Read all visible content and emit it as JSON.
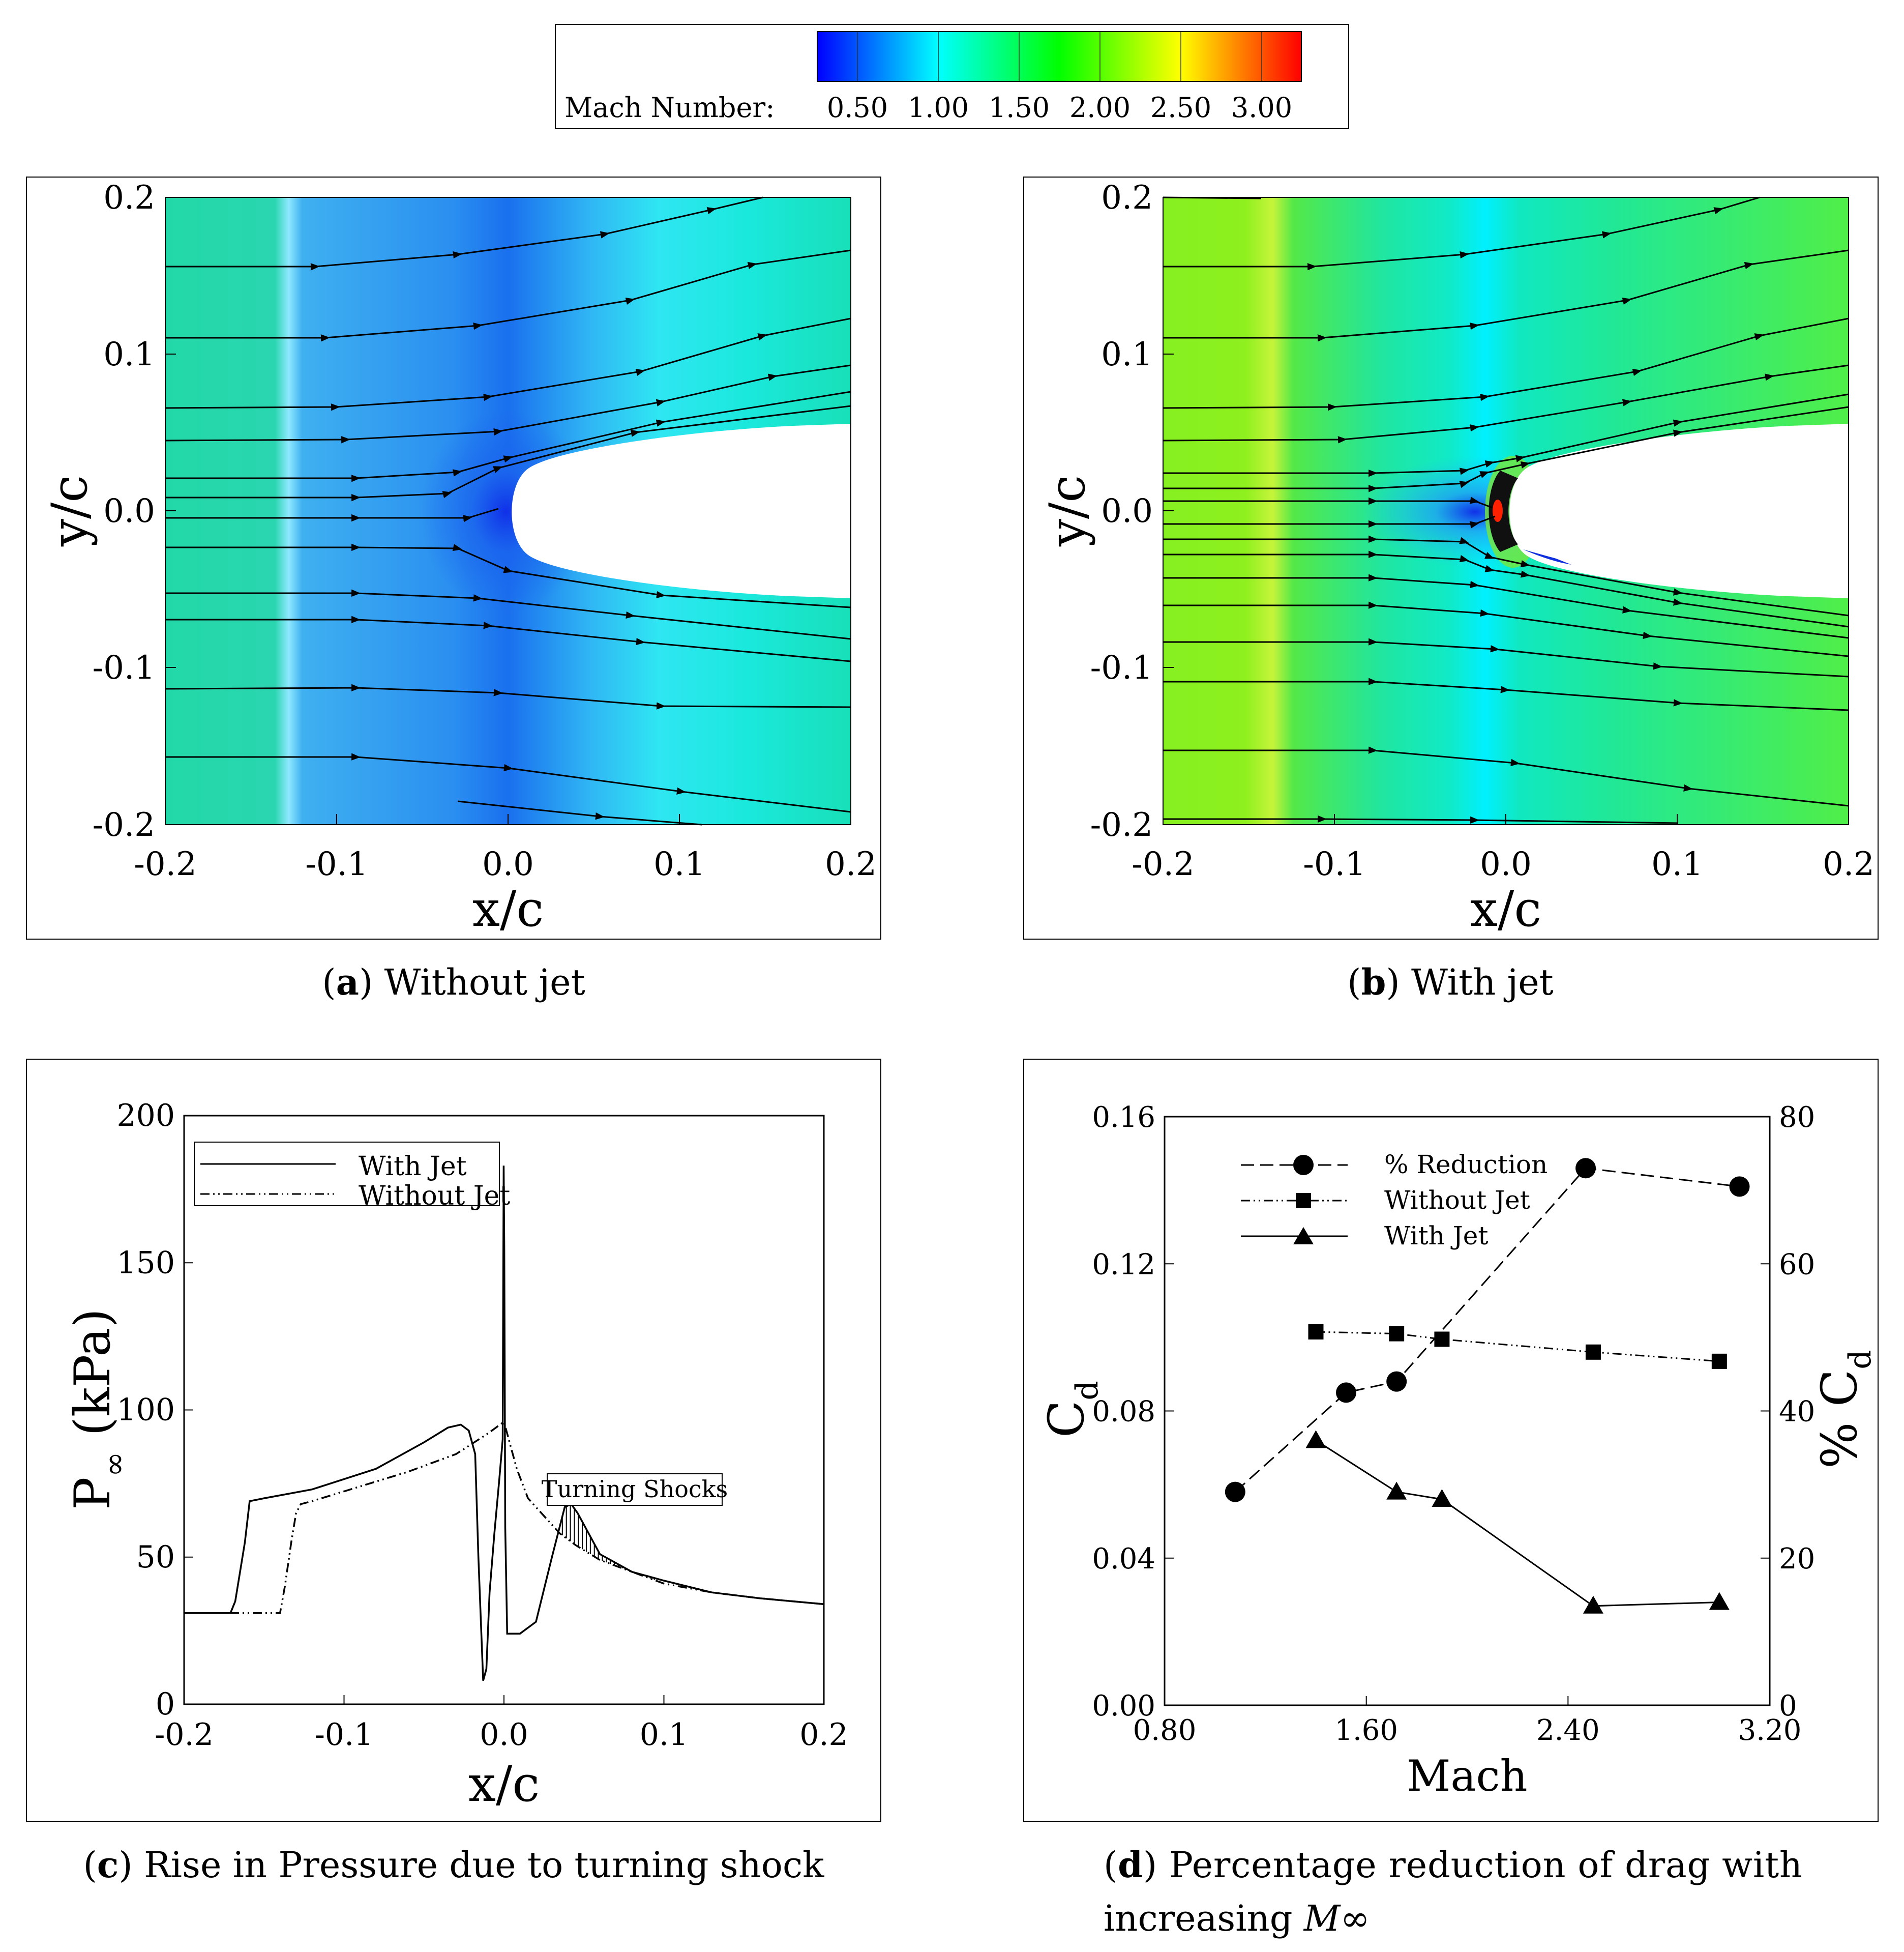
{
  "colorbar": {
    "label": "Mach Number:",
    "tick_labels": [
      "0.50",
      "1.00",
      "1.50",
      "2.00",
      "2.50",
      "3.00"
    ],
    "range": [
      0.25,
      3.25
    ],
    "colors": [
      "#0000ff",
      "#00ffff",
      "#00ff00",
      "#ffff00",
      "#ff0000"
    ]
  },
  "panel_a": {
    "caption_letter": "a",
    "caption_text": "Without jet",
    "xlabel": "x/c",
    "ylabel": "y/c",
    "xticks": [
      "-0.2",
      "-0.1",
      "0.0",
      "0.1",
      "0.2"
    ],
    "yticks": [
      "0.2",
      "0.1",
      "0.0",
      "-0.1",
      "-0.2"
    ],
    "xlim": [
      -0.2,
      0.2
    ],
    "ylim": [
      -0.2,
      0.2
    ]
  },
  "panel_b": {
    "caption_letter": "b",
    "caption_text": "With jet",
    "xlabel": "x/c",
    "ylabel": "y/c",
    "xticks": [
      "-0.2",
      "-0.1",
      "0.0",
      "0.1",
      "0.2"
    ],
    "yticks": [
      "0.2",
      "0.1",
      "0.0",
      "-0.1",
      "-0.2"
    ],
    "xlim": [
      -0.2,
      0.2
    ],
    "ylim": [
      -0.2,
      0.2
    ]
  },
  "panel_c": {
    "caption_letter": "c",
    "caption_text": "Rise in Pressure due to turning shock"
  },
  "panel_d": {
    "caption_letter": "d",
    "caption_text": "Percentage reduction of drag with",
    "caption_line2": "increasing",
    "caption_math": "M∞"
  },
  "chart_data": [
    {
      "type": "line",
      "panel": "c",
      "xlabel": "x/c",
      "ylabel_main": "P",
      "ylabel_sub": "∞",
      "ylabel_unit": "(kPa)",
      "xlim": [
        -0.2,
        0.2
      ],
      "ylim": [
        0,
        200
      ],
      "xticks": [
        -0.2,
        -0.1,
        0.0,
        0.1,
        0.2
      ],
      "xtick_labels": [
        "-0.2",
        "-0.1",
        "0.0",
        "0.1",
        "0.2"
      ],
      "yticks": [
        0,
        50,
        100,
        150,
        200
      ],
      "ytick_labels": [
        "0",
        "50",
        "100",
        "150",
        "200"
      ],
      "annotation": "Turning Shocks",
      "legend": [
        "With Jet",
        "Without Jet"
      ],
      "series": [
        {
          "name": "With Jet",
          "style": "solid",
          "x": [
            -0.2,
            -0.171,
            -0.168,
            -0.162,
            -0.159,
            -0.15,
            -0.12,
            -0.08,
            -0.05,
            -0.035,
            -0.027,
            -0.022,
            -0.018,
            -0.016,
            -0.013,
            -0.011,
            -0.009,
            -0.006,
            -0.003,
            -0.0008,
            -0.0002,
            0.0002,
            0.0008,
            0.002,
            0.005,
            0.01,
            0.02,
            0.03,
            0.038,
            0.042,
            0.046,
            0.052,
            0.06,
            0.08,
            0.1,
            0.13,
            0.16,
            0.2
          ],
          "y": [
            31,
            31,
            35,
            55,
            69,
            70,
            73,
            80,
            89,
            94,
            95,
            93,
            85,
            50,
            8,
            12,
            38,
            58,
            76,
            90,
            183,
            155,
            60,
            24,
            24,
            24,
            28,
            50,
            67,
            68,
            65,
            59,
            51,
            45,
            42,
            38,
            36,
            34
          ]
        },
        {
          "name": "Without Jet",
          "style": "dash-dot-dot",
          "x": [
            -0.2,
            -0.14,
            -0.137,
            -0.133,
            -0.13,
            -0.127,
            -0.12,
            -0.09,
            -0.06,
            -0.03,
            -0.01,
            0.0,
            0.003,
            0.008,
            0.015,
            0.025,
            0.035,
            0.045,
            0.06,
            0.08,
            0.1,
            0.13,
            0.16,
            0.2
          ],
          "y": [
            31,
            31,
            40,
            55,
            65,
            68,
            69,
            74,
            79,
            85,
            92,
            96,
            90,
            80,
            70,
            64,
            58,
            54,
            49,
            45,
            41,
            38,
            36,
            34
          ]
        }
      ]
    },
    {
      "type": "line",
      "panel": "d",
      "xlabel": "Mach",
      "ylabel_left_main": "C",
      "ylabel_left_sub": "d",
      "ylabel_right_main": "% C",
      "ylabel_right_sub": "d",
      "xlim": [
        0.8,
        3.2
      ],
      "ylim_left": [
        0,
        0.16
      ],
      "ylim_right": [
        0,
        80
      ],
      "xtick_labels": [
        "0.80",
        "1.60",
        "2.40",
        "3.20"
      ],
      "ytick_left_labels": [
        "0.00",
        "0.04",
        "0.08",
        "0.12",
        "0.16"
      ],
      "ytick_right_labels": [
        "0",
        "20",
        "40",
        "60",
        "80"
      ],
      "legend": [
        "% Reduction",
        "Without Jet",
        "With Jet"
      ],
      "series": [
        {
          "name": "% Reduction",
          "axis": "right",
          "marker": "circle",
          "style": "long-dash",
          "x": [
            1.08,
            1.52,
            1.72,
            2.47,
            3.08
          ],
          "y": [
            29,
            42.5,
            44,
            73,
            70.5
          ]
        },
        {
          "name": "Without Jet",
          "axis": "left",
          "marker": "square",
          "style": "dash-dot-dot",
          "x": [
            1.4,
            1.72,
            1.9,
            2.5,
            3.0
          ],
          "y": [
            0.1015,
            0.101,
            0.0995,
            0.096,
            0.0935
          ]
        },
        {
          "name": "With Jet",
          "axis": "left",
          "marker": "triangle",
          "style": "solid",
          "x": [
            1.4,
            1.72,
            1.9,
            2.5,
            3.0
          ],
          "y": [
            0.072,
            0.058,
            0.056,
            0.027,
            0.028
          ]
        }
      ]
    }
  ]
}
